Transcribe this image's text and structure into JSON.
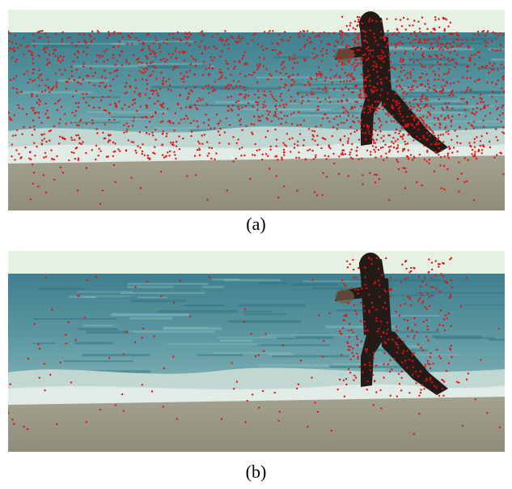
{
  "figure": {
    "panels": [
      {
        "label": "(a)",
        "feature_density": "dense",
        "point_color": "#e8100f"
      },
      {
        "label": "(b)",
        "feature_density": "sparse",
        "point_color": "#e8100f"
      }
    ]
  },
  "scene": {
    "colors": {
      "sky": "#e6f1e3",
      "sea_far": "#3f7f8d",
      "sea_mid": "#5c98a2",
      "foam": "#c9dcd6",
      "sand": "#a3a18f",
      "sand_dark": "#8f8c7c",
      "figure": "#241a18"
    }
  }
}
